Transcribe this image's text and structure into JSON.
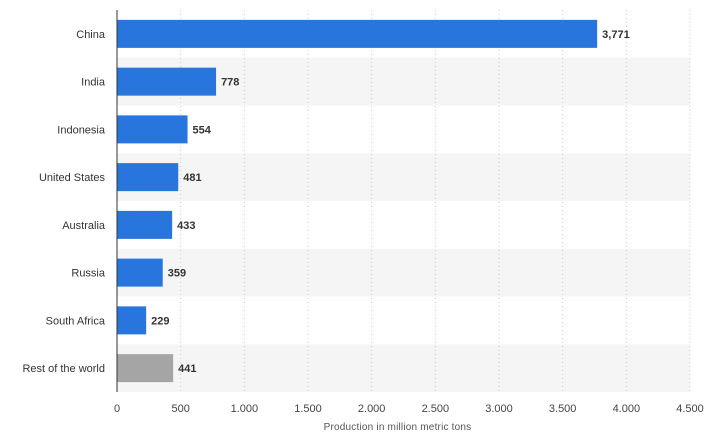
{
  "chart_data": {
    "type": "bar",
    "orientation": "horizontal",
    "categories": [
      "China",
      "India",
      "Indonesia",
      "United States",
      "Australia",
      "Russia",
      "South Africa",
      "Rest of the world"
    ],
    "values": [
      3771,
      778,
      554,
      481,
      433,
      359,
      229,
      441
    ],
    "value_labels": [
      "3,771",
      "778",
      "554",
      "481",
      "433",
      "359",
      "229",
      "441"
    ],
    "bar_colors": [
      "#2876dd",
      "#2876dd",
      "#2876dd",
      "#2876dd",
      "#2876dd",
      "#2876dd",
      "#2876dd",
      "#a5a5a5"
    ],
    "xlim": [
      0,
      4500
    ],
    "x_ticks": [
      0,
      500,
      1000,
      1500,
      2000,
      2500,
      3000,
      3500,
      4000,
      4500
    ],
    "x_tick_labels": [
      "0",
      "500",
      "1.000",
      "1.500",
      "2.000",
      "2.500",
      "3.000",
      "3.500",
      "4.000",
      "4.500"
    ],
    "xlabel": "Production in million metric tons",
    "ylabel": "",
    "title": "",
    "grid": true,
    "legend": false,
    "row_band_color": "#f5f5f5"
  }
}
